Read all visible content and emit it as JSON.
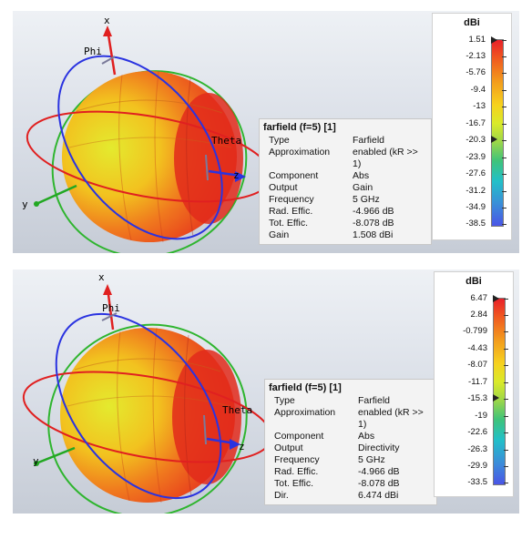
{
  "panels": [
    {
      "info": {
        "title": "farfield (f=5) [1]",
        "rows": [
          {
            "key": "Type",
            "value": "Farfield"
          },
          {
            "key": "Approximation",
            "value": "enabled (kR >> 1)"
          },
          {
            "key": "Component",
            "value": "Abs"
          },
          {
            "key": "Output",
            "value": "Gain"
          },
          {
            "key": "Frequency",
            "value": "5 GHz"
          },
          {
            "key": "Rad. Effic.",
            "value": "-4.966 dB"
          },
          {
            "key": "Tot. Effic.",
            "value": "-8.078 dB"
          },
          {
            "key": "Gain",
            "value": "1.508 dBi"
          }
        ]
      },
      "legend": {
        "unit": "dBi",
        "ticks": [
          "1.51",
          "-2.13",
          "-5.76",
          "-9.4",
          "-13",
          "-16.7",
          "-20.3",
          "-23.9",
          "-27.6",
          "-31.2",
          "-34.9",
          "-38.5"
        ]
      },
      "axes": {
        "x": "x",
        "y": "y",
        "z": "z",
        "phi": "Phi",
        "theta": "Theta"
      }
    },
    {
      "info": {
        "title": "farfield (f=5) [1]",
        "rows": [
          {
            "key": "Type",
            "value": "Farfield"
          },
          {
            "key": "Approximation",
            "value": "enabled (kR >> 1)"
          },
          {
            "key": "Component",
            "value": "Abs"
          },
          {
            "key": "Output",
            "value": "Directivity"
          },
          {
            "key": "Frequency",
            "value": "5 GHz"
          },
          {
            "key": "Rad. Effic.",
            "value": "-4.966 dB"
          },
          {
            "key": "Tot. Effic.",
            "value": "-8.078 dB"
          },
          {
            "key": "Dir.",
            "value": "6.474 dBi"
          }
        ]
      },
      "legend": {
        "unit": "dBi",
        "ticks": [
          "6.47",
          "2.84",
          "-0.799",
          "-4.43",
          "-8.07",
          "-11.7",
          "-15.3",
          "-19",
          "-22.6",
          "-26.3",
          "-29.9",
          "-33.5"
        ]
      },
      "axes": {
        "x": "x",
        "y": "y",
        "z": "z",
        "phi": "Phi",
        "theta": "Theta"
      }
    }
  ]
}
